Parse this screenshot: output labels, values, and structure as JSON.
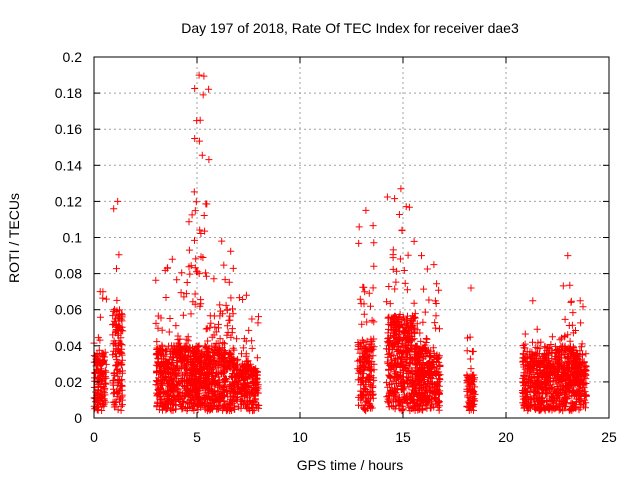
{
  "chart_data": {
    "type": "scatter",
    "title": "Day 197 of 2018, Rate Of TEC Index for receiver dae3",
    "xlabel": "GPS time / hours",
    "ylabel": "ROTI / TECUs",
    "xlim": [
      0,
      25
    ],
    "ylim": [
      0,
      0.2
    ],
    "xticks": [
      0,
      5,
      10,
      15,
      20,
      25
    ],
    "xtick_labels": [
      "0",
      "5",
      "10",
      "15",
      "20",
      "25"
    ],
    "yticks": [
      0,
      0.02,
      0.04,
      0.06,
      0.08,
      0.1,
      0.12,
      0.14,
      0.16,
      0.18,
      0.2
    ],
    "ytick_labels": [
      "0",
      "0.02",
      "0.04",
      "0.06",
      "0.08",
      "0.1",
      "0.12",
      "0.14",
      "0.16",
      "0.18",
      "0.2"
    ],
    "grid": true,
    "marker": "plus",
    "marker_color": "#ff0000",
    "series": [
      {
        "name": "ROTI",
        "clusters": [
          {
            "x_range": [
              0.0,
              0.6
            ],
            "y_median": 0.018,
            "y_max": 0.07,
            "density": 140
          },
          {
            "x_range": [
              0.9,
              1.4
            ],
            "y_median": 0.03,
            "y_max": 0.12,
            "density": 140
          },
          {
            "x_range": [
              3.0,
              4.6
            ],
            "y_median": 0.02,
            "y_max": 0.088,
            "density": 420
          },
          {
            "x_range": [
              4.6,
              5.6
            ],
            "y_median": 0.02,
            "y_max": 0.19,
            "density": 360
          },
          {
            "x_range": [
              5.6,
              6.8
            ],
            "y_median": 0.02,
            "y_max": 0.098,
            "density": 320
          },
          {
            "x_range": [
              6.8,
              8.0
            ],
            "y_median": 0.015,
            "y_max": 0.068,
            "density": 240
          },
          {
            "x_range": [
              12.8,
              13.6
            ],
            "y_median": 0.022,
            "y_max": 0.115,
            "density": 180
          },
          {
            "x_range": [
              14.2,
              15.6
            ],
            "y_median": 0.028,
            "y_max": 0.127,
            "density": 440
          },
          {
            "x_range": [
              15.6,
              16.2
            ],
            "y_median": 0.02,
            "y_max": 0.09,
            "density": 180
          },
          {
            "x_range": [
              16.2,
              16.8
            ],
            "y_median": 0.018,
            "y_max": 0.085,
            "density": 140
          },
          {
            "x_range": [
              18.1,
              18.5
            ],
            "y_median": 0.012,
            "y_max": 0.072,
            "density": 80
          },
          {
            "x_range": [
              20.8,
              21.8
            ],
            "y_median": 0.018,
            "y_max": 0.065,
            "density": 260
          },
          {
            "x_range": [
              21.8,
              22.7
            ],
            "y_median": 0.02,
            "y_max": 0.045,
            "density": 230
          },
          {
            "x_range": [
              22.7,
              23.3
            ],
            "y_median": 0.02,
            "y_max": 0.09,
            "density": 170
          },
          {
            "x_range": [
              23.3,
              23.9
            ],
            "y_median": 0.018,
            "y_max": 0.065,
            "density": 160
          }
        ]
      }
    ]
  }
}
